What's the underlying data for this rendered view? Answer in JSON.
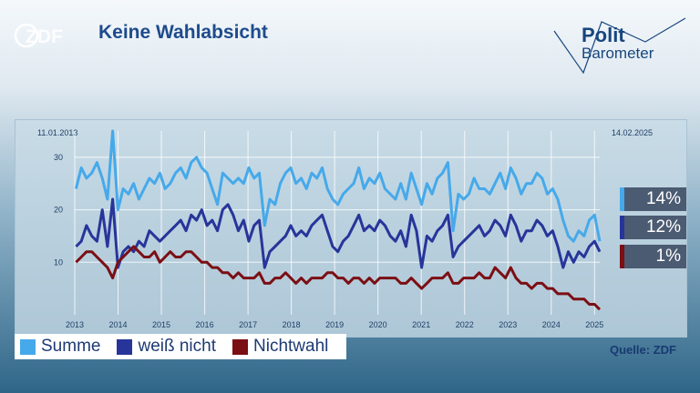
{
  "header": {
    "logo_text": "ZDF",
    "title": "Keine Wahlabsicht",
    "brand_line1": "Polit",
    "brand_line2": "Barometer"
  },
  "dates": {
    "start": "11.01.2013",
    "end": "14.02.2025"
  },
  "source": "Quelle: ZDF",
  "colors": {
    "summe": "#46a9ea",
    "weiss_nicht": "#27359a",
    "nichtwahl": "#7b0f14"
  },
  "values": {
    "summe": "14%",
    "weiss_nicht": "12%",
    "nichtwahl": "1%"
  },
  "legend": [
    {
      "label": "Summe",
      "color": "#46a9ea"
    },
    {
      "label": "weiß nicht",
      "color": "#27359a"
    },
    {
      "label": "Nichtwahl",
      "color": "#7b0f14"
    }
  ],
  "chart_data": {
    "type": "line",
    "x_start": 2013.03,
    "x_end": 2025.12,
    "xlim": [
      2013,
      2025.12
    ],
    "ylim": [
      0,
      35
    ],
    "yticks": [
      "10",
      "20",
      "30"
    ],
    "ytick_values": [
      10,
      20,
      30
    ],
    "xticks": [
      "2013",
      "2014",
      "2015",
      "2016",
      "2017",
      "2018",
      "2019",
      "2020",
      "2021",
      "2022",
      "2023",
      "2024",
      "2025"
    ],
    "xtick_values": [
      2013,
      2014,
      2015,
      2016,
      2017,
      2018,
      2019,
      2020,
      2021,
      2022,
      2023,
      2024,
      2025
    ],
    "grid": true,
    "series": [
      {
        "name": "Summe",
        "values": [
          24,
          28,
          26,
          27,
          29,
          26,
          22,
          35,
          20,
          24,
          23,
          25,
          22,
          24,
          26,
          25,
          27,
          24,
          25,
          27,
          28,
          26,
          29,
          30,
          28,
          27,
          24,
          21,
          27,
          26,
          25,
          26,
          25,
          28,
          26,
          27,
          17,
          22,
          21,
          25,
          27,
          28,
          25,
          26,
          24,
          27,
          26,
          28,
          24,
          22,
          21,
          23,
          24,
          25,
          28,
          24,
          26,
          25,
          27,
          24,
          23,
          22,
          25,
          22,
          27,
          24,
          21,
          25,
          23,
          26,
          27,
          29,
          16,
          23,
          22,
          23,
          26,
          24,
          24,
          23,
          25,
          27,
          24,
          28,
          26,
          23,
          25,
          25,
          27,
          26,
          23,
          24,
          22,
          18,
          15,
          14,
          16,
          15,
          18,
          19,
          14
        ]
      },
      {
        "name": "weiß nicht",
        "values": [
          13,
          14,
          17,
          15,
          14,
          20,
          13,
          22,
          9,
          12,
          13,
          12,
          14,
          13,
          16,
          15,
          14,
          15,
          16,
          17,
          18,
          16,
          19,
          18,
          20,
          17,
          18,
          16,
          20,
          21,
          19,
          16,
          18,
          14,
          17,
          18,
          9,
          12,
          13,
          14,
          15,
          17,
          15,
          16,
          15,
          17,
          18,
          19,
          16,
          13,
          12,
          14,
          15,
          17,
          19,
          16,
          17,
          16,
          18,
          17,
          15,
          14,
          16,
          13,
          19,
          16,
          9,
          15,
          14,
          16,
          17,
          19,
          11,
          13,
          14,
          15,
          16,
          17,
          15,
          16,
          18,
          17,
          15,
          19,
          17,
          14,
          16,
          16,
          18,
          17,
          15,
          16,
          13,
          9,
          12,
          10,
          12,
          11,
          13,
          14,
          12
        ]
      },
      {
        "name": "Nichtwahl",
        "values": [
          10,
          11,
          12,
          12,
          11,
          10,
          9,
          7,
          10,
          11,
          12,
          13,
          12,
          11,
          11,
          12,
          10,
          11,
          12,
          11,
          11,
          12,
          12,
          11,
          10,
          10,
          9,
          9,
          8,
          8,
          7,
          8,
          7,
          7,
          7,
          8,
          6,
          6,
          7,
          7,
          8,
          7,
          6,
          7,
          6,
          7,
          7,
          7,
          8,
          8,
          7,
          7,
          6,
          7,
          7,
          6,
          7,
          6,
          7,
          7,
          7,
          7,
          6,
          6,
          7,
          6,
          5,
          6,
          7,
          7,
          7,
          8,
          6,
          6,
          7,
          7,
          7,
          8,
          7,
          7,
          9,
          8,
          7,
          9,
          7,
          6,
          6,
          5,
          6,
          6,
          5,
          5,
          4,
          4,
          4,
          3,
          3,
          3,
          2,
          2,
          1
        ]
      }
    ]
  }
}
